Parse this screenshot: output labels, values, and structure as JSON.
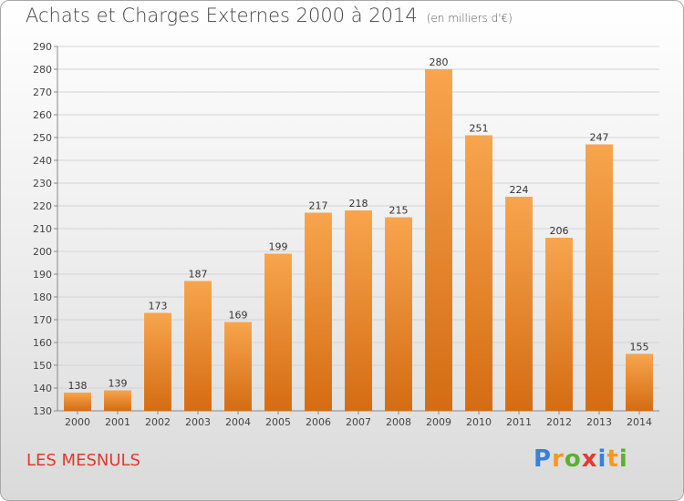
{
  "header": {
    "title": "Achats et Charges Externes 2000 à 2014",
    "subtitle": "(en milliers d'€)"
  },
  "footer": {
    "place": "LES MESNULS",
    "logo": "Proxiti"
  },
  "colors": {
    "bar_light": "#f7a54e",
    "bar_dark": "#d46c12",
    "place_text": "#e03a2a"
  },
  "chart_data": {
    "type": "bar",
    "categories": [
      "2000",
      "2001",
      "2002",
      "2003",
      "2004",
      "2005",
      "2006",
      "2007",
      "2008",
      "2009",
      "2010",
      "2011",
      "2012",
      "2013",
      "2014"
    ],
    "values": [
      138,
      139,
      173,
      187,
      169,
      199,
      217,
      218,
      215,
      280,
      251,
      224,
      206,
      247,
      155
    ],
    "title": "Achats et Charges Externes 2000 à 2014",
    "subtitle": "(en milliers d'€)",
    "xlabel": "",
    "ylabel": "",
    "ylim": [
      130,
      290
    ],
    "yticks": [
      130,
      140,
      150,
      160,
      170,
      180,
      190,
      200,
      210,
      220,
      230,
      240,
      250,
      260,
      270,
      280,
      290
    ],
    "grid": true,
    "data_labels": true
  }
}
